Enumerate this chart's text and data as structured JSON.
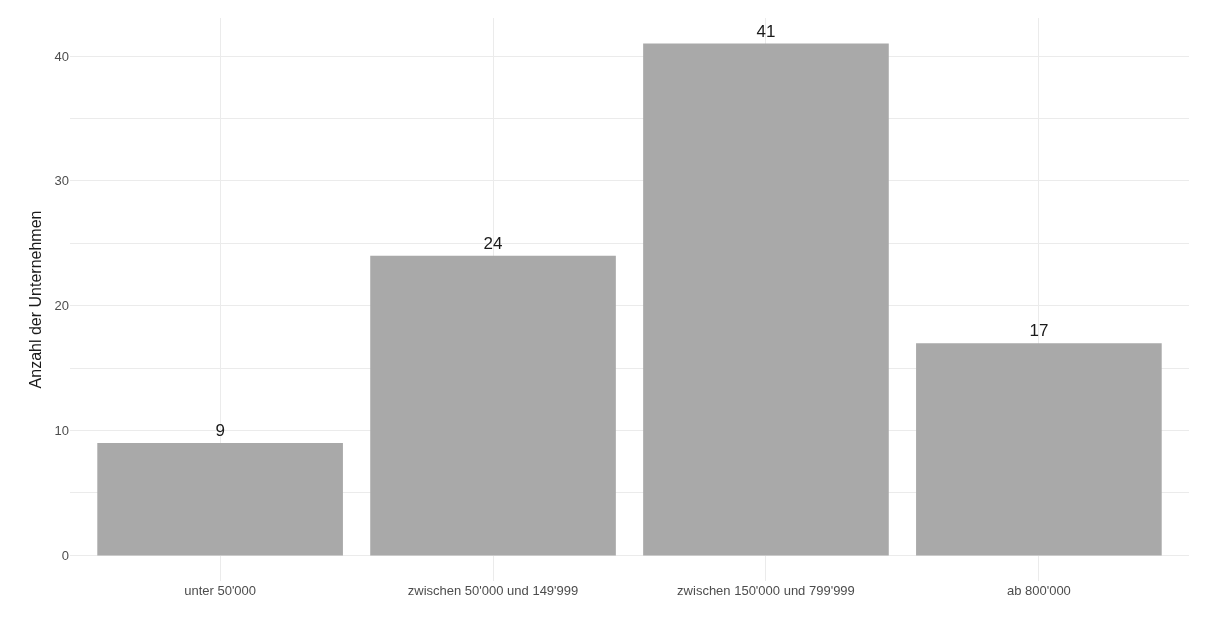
{
  "chart_data": {
    "type": "bar",
    "ylabel": "Anzahl der Unternehmen",
    "categories": [
      "unter 50'000",
      "zwischen 50'000 und 149'999",
      "zwischen 150'000 und 799'999",
      "ab 800'000"
    ],
    "values": [
      9,
      24,
      41,
      17
    ],
    "color": "#a9a9a9",
    "data_labels": true,
    "ylim": [
      -2.05,
      43.05
    ],
    "yticks": [
      0,
      {
        "value": 5,
        "label": null
      },
      10,
      {
        "value": 15,
        "label": null
      },
      20,
      {
        "value": 25,
        "label": null
      },
      30,
      {
        "value": 35,
        "label": null
      },
      40
    ],
    "grid": true
  }
}
